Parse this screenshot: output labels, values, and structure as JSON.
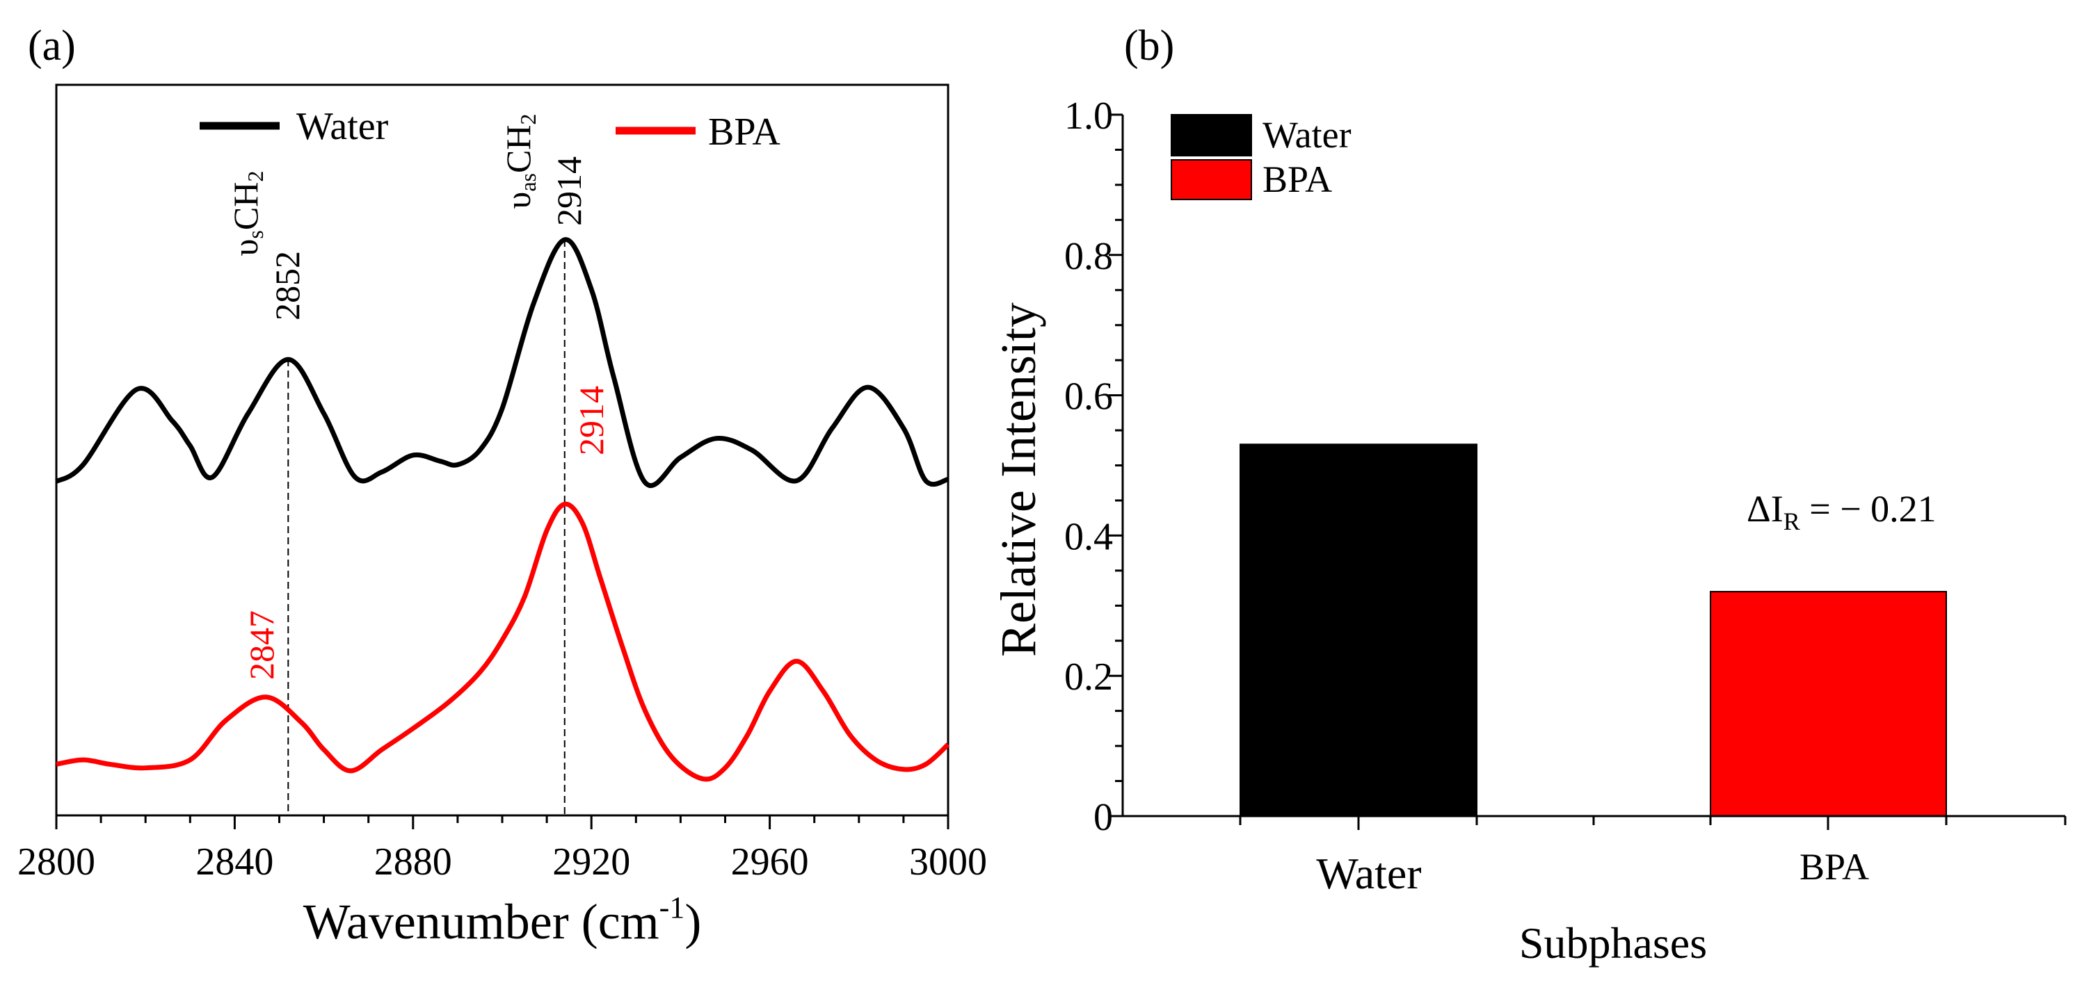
{
  "colors": {
    "water": "#000000",
    "bpa": "#ff0000"
  },
  "chart_data": [
    {
      "panel_label": "(a)",
      "type": "line",
      "xlabel": "Wavenumber (cm",
      "xlabel_sup": "-1",
      "xlabel_close": ")",
      "xlim": [
        2800,
        3000
      ],
      "x_ticks": [
        "2800",
        "2840",
        "2880",
        "2920",
        "2960",
        "3000"
      ],
      "ylabel": "",
      "legend": [
        {
          "name": "Water",
          "color": "#000000"
        },
        {
          "name": "BPA",
          "color": "#ff0000"
        }
      ],
      "legend_position": "top",
      "series": [
        {
          "name": "Water",
          "color": "#000000",
          "x": [
            2800,
            2806,
            2818,
            2826,
            2830,
            2835,
            2843,
            2852,
            2860,
            2867,
            2873,
            2880,
            2886,
            2890,
            2895,
            2900,
            2907,
            2914,
            2920,
            2925,
            2932,
            2940,
            2948,
            2956,
            2966,
            2974,
            2982,
            2990,
            2995,
            3000
          ],
          "y": [
            0.457,
            0.48,
            0.583,
            0.54,
            0.506,
            0.463,
            0.55,
            0.624,
            0.55,
            0.463,
            0.47,
            0.493,
            0.485,
            0.48,
            0.5,
            0.557,
            0.7,
            0.788,
            0.72,
            0.6,
            0.456,
            0.49,
            0.516,
            0.5,
            0.458,
            0.53,
            0.586,
            0.53,
            0.458,
            0.46
          ]
        },
        {
          "name": "BPA",
          "color": "#ff0000",
          "x": [
            2800,
            2806,
            2812,
            2820,
            2830,
            2838,
            2847,
            2855,
            2860,
            2866,
            2873,
            2880,
            2888,
            2895,
            2900,
            2905,
            2910,
            2914,
            2918,
            2922,
            2927,
            2932,
            2938,
            2945,
            2950,
            2955,
            2960,
            2966,
            2972,
            2978,
            2984,
            2990,
            2995,
            3000
          ],
          "y": [
            0.07,
            0.076,
            0.07,
            0.065,
            0.076,
            0.13,
            0.162,
            0.127,
            0.09,
            0.061,
            0.09,
            0.119,
            0.155,
            0.196,
            0.24,
            0.299,
            0.39,
            0.426,
            0.4,
            0.325,
            0.23,
            0.144,
            0.08,
            0.05,
            0.065,
            0.11,
            0.17,
            0.211,
            0.17,
            0.11,
            0.075,
            0.063,
            0.07,
            0.097
          ]
        }
      ],
      "annotations": [
        {
          "text": "υ",
          "sub": "s",
          "rest": "CH",
          "sub2": "2",
          "color": "#000000"
        },
        {
          "text": "2852",
          "x": 2852,
          "color": "#000000"
        },
        {
          "text": "υ",
          "sub": "as",
          "rest": "CH",
          "sub2": "2",
          "color": "#000000"
        },
        {
          "text": "2914",
          "x": 2914,
          "color": "#000000"
        },
        {
          "text": "2914",
          "x": 2914,
          "color": "#ff0000"
        },
        {
          "text": "2847",
          "x": 2847,
          "color": "#ff0000"
        }
      ],
      "reference_lines": [
        2852,
        2914
      ]
    },
    {
      "panel_label": "(b)",
      "type": "bar",
      "categories": [
        "Water",
        "BPA"
      ],
      "values": [
        0.53,
        0.32
      ],
      "colors": [
        "#000000",
        "#ff0000"
      ],
      "xlabel": "Subphases",
      "ylabel": "Relative Intensity",
      "ylim": [
        0,
        1.0
      ],
      "y_ticks": [
        "0",
        "0.2",
        "0.4",
        "0.6",
        "0.8",
        "1.0"
      ],
      "legend": [
        {
          "name": "Water",
          "color": "#000000"
        },
        {
          "name": "BPA",
          "color": "#ff0000"
        }
      ],
      "legend_position": "top-left",
      "annotation": {
        "prefix": "ΔI",
        "sub": "R",
        "rest": " = − 0.21"
      }
    }
  ]
}
